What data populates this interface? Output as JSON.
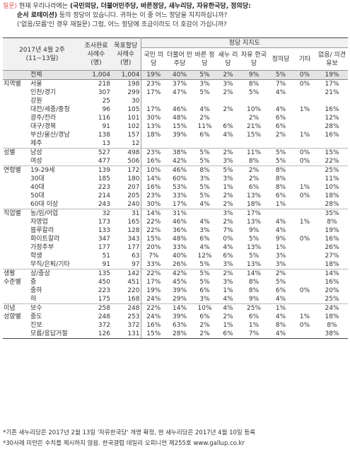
{
  "question": {
    "label": "질문)",
    "text1": "현재 우리나라에는",
    "parties_bold": "(국민의당, 더불어민주당, 바른정당, 새누리당, 자유한국당, 정의당:",
    "line2_bold": "순서 로테이션)",
    "line2_rest": "등의 정당이 있습니다. 귀하는 이 중 어느 정당을 지지하십니까?",
    "line3": "('없음/모름'인 경우 재질문) 그럼, 어느 정당에 조금이라도 더 호감이 가십니까?"
  },
  "header": {
    "period": "2017년 4월 2주",
    "period_sub": "(11~13일)",
    "col_sample": "조사완료 사례수 (명)",
    "col_weight": "목표할당 사례수 (명)",
    "group": "정당 지지도",
    "parties": [
      "국민 의당",
      "더불어 민주당",
      "바른 정당",
      "새누 리당",
      "자유 한국당",
      "정의당",
      "기타",
      "없음/ 의견유보"
    ]
  },
  "rows": [
    {
      "cat": "",
      "sub": "전체",
      "n1": "1,004",
      "n2": "1,004",
      "v": [
        "19%",
        "40%",
        "5%",
        "2%",
        "9%",
        "5%",
        "0%",
        "19%"
      ],
      "total": true
    },
    {
      "cat": "지역별",
      "sub": "서울",
      "n1": "218",
      "n2": "198",
      "v": [
        "23%",
        "37%",
        "3%",
        "3%",
        "8%",
        "7%",
        "0%",
        "17%"
      ],
      "g": true
    },
    {
      "cat": "",
      "sub": "인천/경기",
      "n1": "307",
      "n2": "299",
      "v": [
        "17%",
        "47%",
        "5%",
        "2%",
        "5%",
        "4%",
        "",
        "21%"
      ]
    },
    {
      "cat": "",
      "sub": "강원",
      "n1": "25",
      "n2": "30",
      "v": [
        "",
        "",
        "",
        "",
        "",
        "",
        "",
        ""
      ]
    },
    {
      "cat": "",
      "sub": "대전/세종/충청",
      "n1": "96",
      "n2": "105",
      "v": [
        "17%",
        "46%",
        "4%",
        "2%",
        "10%",
        "4%",
        "1%",
        "16%"
      ]
    },
    {
      "cat": "",
      "sub": "광주/전라",
      "n1": "116",
      "n2": "101",
      "v": [
        "30%",
        "48%",
        "2%",
        "",
        "2%",
        "6%",
        "",
        "12%"
      ]
    },
    {
      "cat": "",
      "sub": "대구/경북",
      "n1": "91",
      "n2": "102",
      "v": [
        "13%",
        "15%",
        "11%",
        "6%",
        "21%",
        "6%",
        "",
        "28%"
      ]
    },
    {
      "cat": "",
      "sub": "부산/울산/경남",
      "n1": "138",
      "n2": "157",
      "v": [
        "18%",
        "39%",
        "6%",
        "4%",
        "15%",
        "2%",
        "1%",
        "16%"
      ]
    },
    {
      "cat": "",
      "sub": "제주",
      "n1": "13",
      "n2": "12",
      "v": [
        "",
        "",
        "",
        "",
        "",
        "",
        "",
        ""
      ]
    },
    {
      "cat": "성별",
      "sub": "남성",
      "n1": "527",
      "n2": "498",
      "v": [
        "23%",
        "38%",
        "5%",
        "2%",
        "11%",
        "5%",
        "0%",
        "15%"
      ],
      "g": true
    },
    {
      "cat": "",
      "sub": "여성",
      "n1": "477",
      "n2": "506",
      "v": [
        "16%",
        "42%",
        "5%",
        "3%",
        "8%",
        "5%",
        "0%",
        "22%"
      ]
    },
    {
      "cat": "연령별",
      "sub": "19-29세",
      "n1": "139",
      "n2": "172",
      "v": [
        "10%",
        "46%",
        "8%",
        "5%",
        "2%",
        "8%",
        "",
        "25%"
      ],
      "g": true
    },
    {
      "cat": "",
      "sub": "30대",
      "n1": "185",
      "n2": "180",
      "v": [
        "14%",
        "60%",
        "3%",
        "3%",
        "2%",
        "8%",
        "",
        "11%"
      ]
    },
    {
      "cat": "",
      "sub": "40대",
      "n1": "223",
      "n2": "207",
      "v": [
        "16%",
        "53%",
        "5%",
        "1%",
        "6%",
        "8%",
        "1%",
        "10%"
      ]
    },
    {
      "cat": "",
      "sub": "50대",
      "n1": "214",
      "n2": "205",
      "v": [
        "23%",
        "33%",
        "5%",
        "2%",
        "13%",
        "6%",
        "0%",
        "18%"
      ]
    },
    {
      "cat": "",
      "sub": "60대 이상",
      "n1": "243",
      "n2": "240",
      "v": [
        "30%",
        "17%",
        "4%",
        "2%",
        "18%",
        "1%",
        "",
        "28%"
      ]
    },
    {
      "cat": "직업별",
      "sub": "농/임/어업",
      "n1": "32",
      "n2": "31",
      "v": [
        "14%",
        "31%",
        "",
        "3%",
        "17%",
        "",
        "",
        "35%"
      ],
      "g": true
    },
    {
      "cat": "",
      "sub": "자영업",
      "n1": "173",
      "n2": "165",
      "v": [
        "22%",
        "46%",
        "4%",
        "2%",
        "13%",
        "4%",
        "1%",
        "8%"
      ]
    },
    {
      "cat": "",
      "sub": "블루칼라",
      "n1": "133",
      "n2": "128",
      "v": [
        "22%",
        "36%",
        "3%",
        "7%",
        "9%",
        "4%",
        "",
        "19%"
      ]
    },
    {
      "cat": "",
      "sub": "화이트칼라",
      "n1": "347",
      "n2": "343",
      "v": [
        "15%",
        "48%",
        "6%",
        "0%",
        "5%",
        "9%",
        "0%",
        "16%"
      ]
    },
    {
      "cat": "",
      "sub": "가정주부",
      "n1": "177",
      "n2": "177",
      "v": [
        "20%",
        "33%",
        "4%",
        "4%",
        "13%",
        "1%",
        "",
        "26%"
      ]
    },
    {
      "cat": "",
      "sub": "학생",
      "n1": "51",
      "n2": "63",
      "v": [
        "7%",
        "40%",
        "12%",
        "6%",
        "5%",
        "3%",
        "",
        "27%"
      ]
    },
    {
      "cat": "",
      "sub": "무직/은퇴/기타",
      "n1": "91",
      "n2": "97",
      "v": [
        "33%",
        "26%",
        "5%",
        "3%",
        "13%",
        "3%",
        "",
        "18%"
      ]
    },
    {
      "cat": "생활",
      "sub": "상/중상",
      "n1": "135",
      "n2": "142",
      "v": [
        "22%",
        "42%",
        "5%",
        "2%",
        "14%",
        "2%",
        "",
        "14%"
      ],
      "g": true
    },
    {
      "cat": "수준별",
      "sub": "중",
      "n1": "450",
      "n2": "451",
      "v": [
        "17%",
        "45%",
        "5%",
        "3%",
        "8%",
        "5%",
        "",
        "16%"
      ]
    },
    {
      "cat": "",
      "sub": "중하",
      "n1": "223",
      "n2": "220",
      "v": [
        "19%",
        "39%",
        "6%",
        "1%",
        "8%",
        "6%",
        "0%",
        "20%"
      ]
    },
    {
      "cat": "",
      "sub": "하",
      "n1": "175",
      "n2": "168",
      "v": [
        "24%",
        "29%",
        "3%",
        "4%",
        "9%",
        "4%",
        "",
        "25%"
      ]
    },
    {
      "cat": "이념",
      "sub": "보수",
      "n1": "258",
      "n2": "248",
      "v": [
        "22%",
        "14%",
        "10%",
        "4%",
        "25%",
        "1%",
        "",
        "24%"
      ],
      "g": true
    },
    {
      "cat": "성향별",
      "sub": "중도",
      "n1": "248",
      "n2": "253",
      "v": [
        "24%",
        "39%",
        "6%",
        "2%",
        "6%",
        "4%",
        "1%",
        "18%"
      ]
    },
    {
      "cat": "",
      "sub": "진보",
      "n1": "372",
      "n2": "372",
      "v": [
        "16%",
        "63%",
        "2%",
        "1%",
        "1%",
        "8%",
        "0%",
        "8%"
      ]
    },
    {
      "cat": "",
      "sub": "모름/응답거절",
      "n1": "126",
      "n2": "131",
      "v": [
        "15%",
        "28%",
        "2%",
        "6%",
        "7%",
        "4%",
        "",
        "38%"
      ],
      "last": true
    }
  ],
  "notes": [
    "*기존 새누리당은 2017년 2월 13일 '자유한국당' 개명 확정, 현 새누리당은 2017년 4월 10일 등록",
    "*30사례 미만은 수치를 제시하지 않음. 한국갤럽 데일리 오피니언 제255호 www.gallup.co.kr"
  ]
}
